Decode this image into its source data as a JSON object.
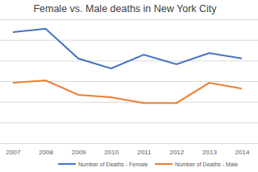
{
  "chart_data": {
    "type": "line",
    "title": "Female vs. Male deaths in New York City",
    "categories": [
      "2007",
      "2008",
      "2009",
      "2010",
      "2011",
      "2012",
      "2013",
      "2014"
    ],
    "series": [
      {
        "name": "Number of Deaths - Female",
        "color": "#4472c4",
        "values": [
          26900,
          27700,
          20500,
          18100,
          21400,
          19100,
          21800,
          20500
        ]
      },
      {
        "name": "Number of Deaths - Male",
        "color": "#ed7d31",
        "values": [
          14600,
          15200,
          11700,
          11100,
          9700,
          9700,
          14600,
          13200
        ]
      }
    ],
    "ylim": [
      0,
      30000
    ],
    "yticks": [
      0,
      5000,
      10000,
      15000,
      20000,
      25000,
      30000
    ],
    "grid": true,
    "legend": "bottom",
    "tick_labels": "x"
  }
}
